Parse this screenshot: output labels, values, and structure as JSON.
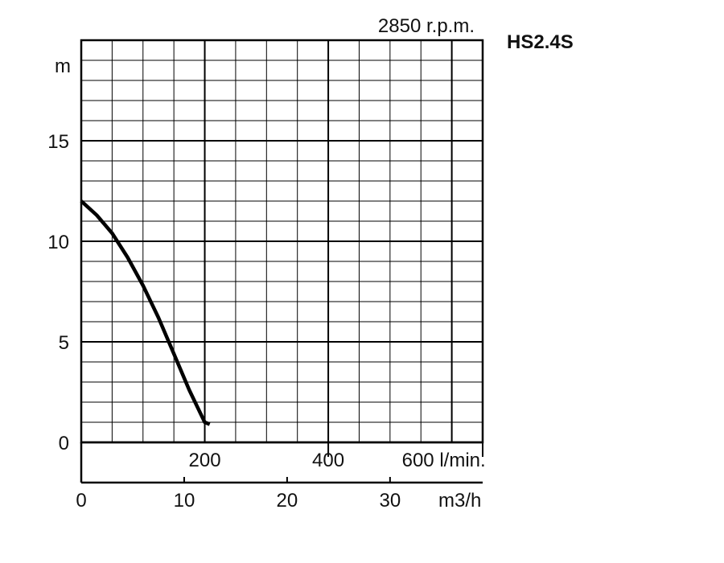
{
  "chart_data": {
    "type": "line",
    "title": "2850 r.p.m.",
    "model": "HS2.4S",
    "ylabel": "m",
    "ylim": [
      0,
      20
    ],
    "y_ticks": [
      0,
      5,
      10,
      15
    ],
    "x_lmin": {
      "label": "l/min.",
      "lim": [
        0,
        650
      ],
      "ticks": [
        200,
        400,
        600
      ],
      "tick_labels": [
        "200",
        "400",
        "600 l/min."
      ]
    },
    "x_m3h": {
      "label": "m3/h",
      "lim": [
        0,
        39
      ],
      "ticks": [
        0,
        10,
        20,
        30
      ],
      "tick_labels": [
        "0",
        "10",
        "20",
        "30"
      ]
    },
    "grid": true,
    "series": [
      {
        "x": [
          0,
          25,
          50,
          75,
          100,
          125,
          150,
          175,
          200,
          208
        ],
        "y": [
          12,
          11.3,
          10.4,
          9.2,
          7.8,
          6.2,
          4.4,
          2.6,
          1.0,
          0.9
        ]
      }
    ]
  }
}
